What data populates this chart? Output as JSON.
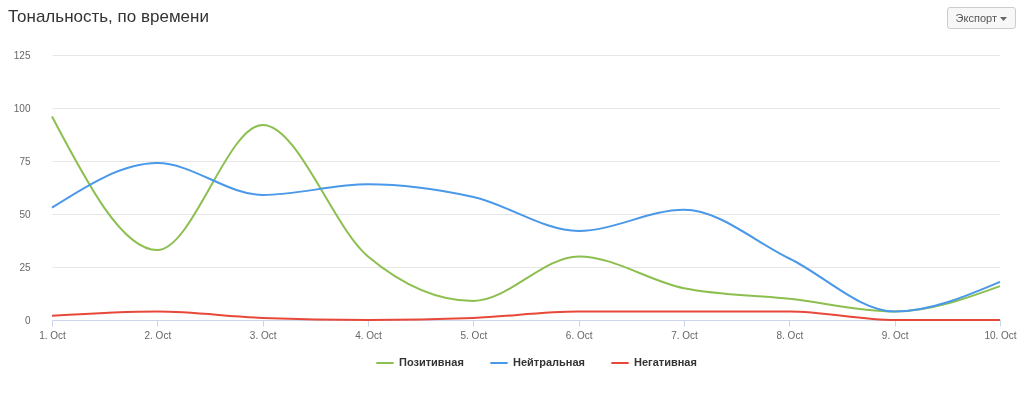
{
  "chart_data": {
    "type": "line",
    "title": "Тональность, по времени",
    "annotations": [
      "Экспорт"
    ],
    "categories": [
      "1. Oct",
      "2. Oct",
      "3. Oct",
      "4. Oct",
      "5. Oct",
      "6. Oct",
      "7. Oct",
      "8. Oct",
      "9. Oct",
      "10. Oct"
    ],
    "series": [
      {
        "name": "Позитивная",
        "color": "#8cbf4f",
        "values": [
          96,
          33,
          92,
          30,
          9,
          30,
          15,
          10,
          4,
          16
        ]
      },
      {
        "name": "Нейтральная",
        "color": "#4a98e8",
        "values": [
          53,
          74,
          59,
          64,
          58,
          42,
          52,
          29,
          4,
          18
        ]
      },
      {
        "name": "Негативная",
        "color": "#e8483a",
        "values": [
          2,
          4,
          1,
          0,
          1,
          4,
          4,
          4,
          0,
          0
        ]
      }
    ],
    "ylim": [
      0,
      125
    ],
    "yticks": [
      0,
      25,
      50,
      75,
      100,
      125
    ],
    "grid": "y",
    "legend": "bottom",
    "marker": "none",
    "line_style": "solid"
  }
}
